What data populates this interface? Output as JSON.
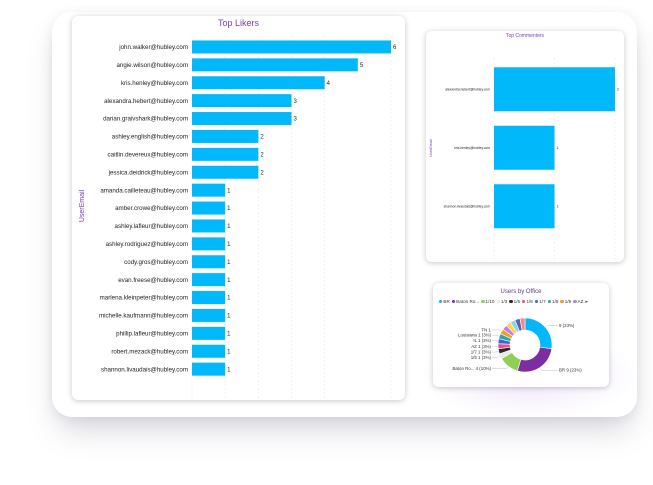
{
  "chart_data": [
    {
      "type": "bar",
      "orientation": "horizontal",
      "title": "Top Likers",
      "ylabel": "UserEmail",
      "categories": [
        "john.walker@hubley.com",
        "angie.wilson@hubley.com",
        "kris.henley@hubley.com",
        "alexandra.hebert@hubley.com",
        "darian.graivshark@hubley.com",
        "ashley.english@hubley.com",
        "caitlin.devereux@hubley.com",
        "jessica.deidrick@hubley.com",
        "amanda.cailleteau@hubley.com",
        "amber.crowe@hubley.com",
        "ashley.lafleur@hubley.com",
        "ashley.rodriguez@hubley.com",
        "cody.gros@hubley.com",
        "evan.freese@hubley.com",
        "marlena.kleinpeter@hubley.com",
        "michelle.kaufmann@hubley.com",
        "phillip.lafleur@hubley.com",
        "robert.mezack@hubley.com",
        "shannon.livaudais@hubley.com"
      ],
      "values": [
        6,
        5,
        4,
        3,
        3,
        2,
        2,
        2,
        1,
        1,
        1,
        1,
        1,
        1,
        1,
        1,
        1,
        1,
        1
      ],
      "xticks": [
        0,
        1,
        2,
        3,
        4,
        6
      ],
      "xlim": [
        0,
        6
      ],
      "color": "#01b8fb",
      "grid": true
    },
    {
      "type": "bar",
      "orientation": "horizontal",
      "title": "Top Commenters",
      "ylabel": "UserEmail",
      "categories": [
        "alexandra.hebert@hubley.com",
        "kris.henley@hubley.com",
        "shannon.livaudais@hubley.com"
      ],
      "values": [
        2,
        1,
        1
      ],
      "xticks": [
        0,
        1,
        2
      ],
      "xlim": [
        0,
        2
      ],
      "color": "#01b8fb",
      "grid": true
    },
    {
      "type": "pie",
      "variant": "donut",
      "title": "Users by Office",
      "legend": [
        "BR",
        "Baton Ro...",
        "1/10",
        "1/3",
        "1/5",
        "1/6",
        "1/7",
        "1/8",
        "1/9",
        "AZ"
      ],
      "legend_more": "▸",
      "legend_placement": "top",
      "categories": [
        "(blank)",
        "BR",
        "Baton Ro...",
        "1/5",
        "1/7",
        "AZ",
        "IL",
        "Louisiana",
        "TN",
        "1/10",
        "1/3",
        "1/6",
        "1/8",
        "1/9"
      ],
      "values": [
        9,
        9,
        4,
        1,
        1,
        1,
        1,
        1,
        1,
        1,
        1,
        1,
        1,
        1
      ],
      "slice_labels": [
        "9 (23%)",
        "BR 9 (23%)",
        "Baton Ro... 4 (10%)",
        "1/5 1 (3%)",
        "1/7 1 (3%)",
        "AZ 1 (3%)",
        "IL 1 (3%)",
        "Louisiana 1 (3%)",
        "TN 1",
        "",
        "",
        "",
        "",
        ""
      ],
      "colors": [
        "#01b8fb",
        "#7c2ea0",
        "#8fcf52",
        "#e9e9e9",
        "#2b2b2b",
        "#ef4d8c",
        "#3f66d8",
        "#27a6b0",
        "#f0a020",
        "#c080e0",
        "#ffd34d",
        "#7fd6f0",
        "#5e60a8",
        "#f08c8c"
      ]
    }
  ]
}
